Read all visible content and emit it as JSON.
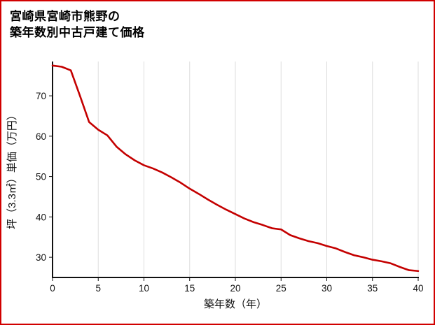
{
  "title": {
    "line1": "宮崎県宮崎市熊野の",
    "line2": "築年数別中古戸建て価格"
  },
  "chart_data": {
    "type": "line",
    "title": "宮崎県宮崎市熊野の築年数別中古戸建て価格",
    "xlabel": "築年数（年）",
    "ylabel": "坪（3.3㎡）単価（万円）",
    "x": [
      0,
      1,
      2,
      3,
      4,
      5,
      6,
      7,
      8,
      9,
      10,
      11,
      12,
      13,
      14,
      15,
      16,
      17,
      18,
      19,
      20,
      21,
      22,
      23,
      24,
      25,
      26,
      27,
      28,
      29,
      30,
      31,
      32,
      33,
      34,
      35,
      36,
      37,
      38,
      39,
      40
    ],
    "values": [
      77.5,
      77.2,
      76.3,
      70.0,
      63.5,
      61.6,
      60.2,
      57.4,
      55.5,
      54.0,
      52.8,
      52.0,
      51.0,
      49.8,
      48.5,
      47.0,
      45.7,
      44.3,
      43.0,
      41.8,
      40.7,
      39.6,
      38.7,
      38.0,
      37.2,
      36.9,
      35.5,
      34.7,
      34.0,
      33.5,
      32.8,
      32.2,
      31.3,
      30.5,
      30.0,
      29.4,
      29.0,
      28.5,
      27.6,
      26.8,
      26.6
    ],
    "xlim": [
      0,
      40
    ],
    "ylim": [
      25,
      78.5
    ],
    "xticks": [
      0,
      5,
      10,
      15,
      20,
      25,
      30,
      35,
      40
    ],
    "yticks": [
      30,
      40,
      50,
      60,
      70
    ],
    "grid": "vertical-only",
    "legend": "none",
    "colors": {
      "line": "#c40000",
      "border": "#d10000",
      "grid": "#dddddd",
      "axis": "#111111"
    }
  }
}
